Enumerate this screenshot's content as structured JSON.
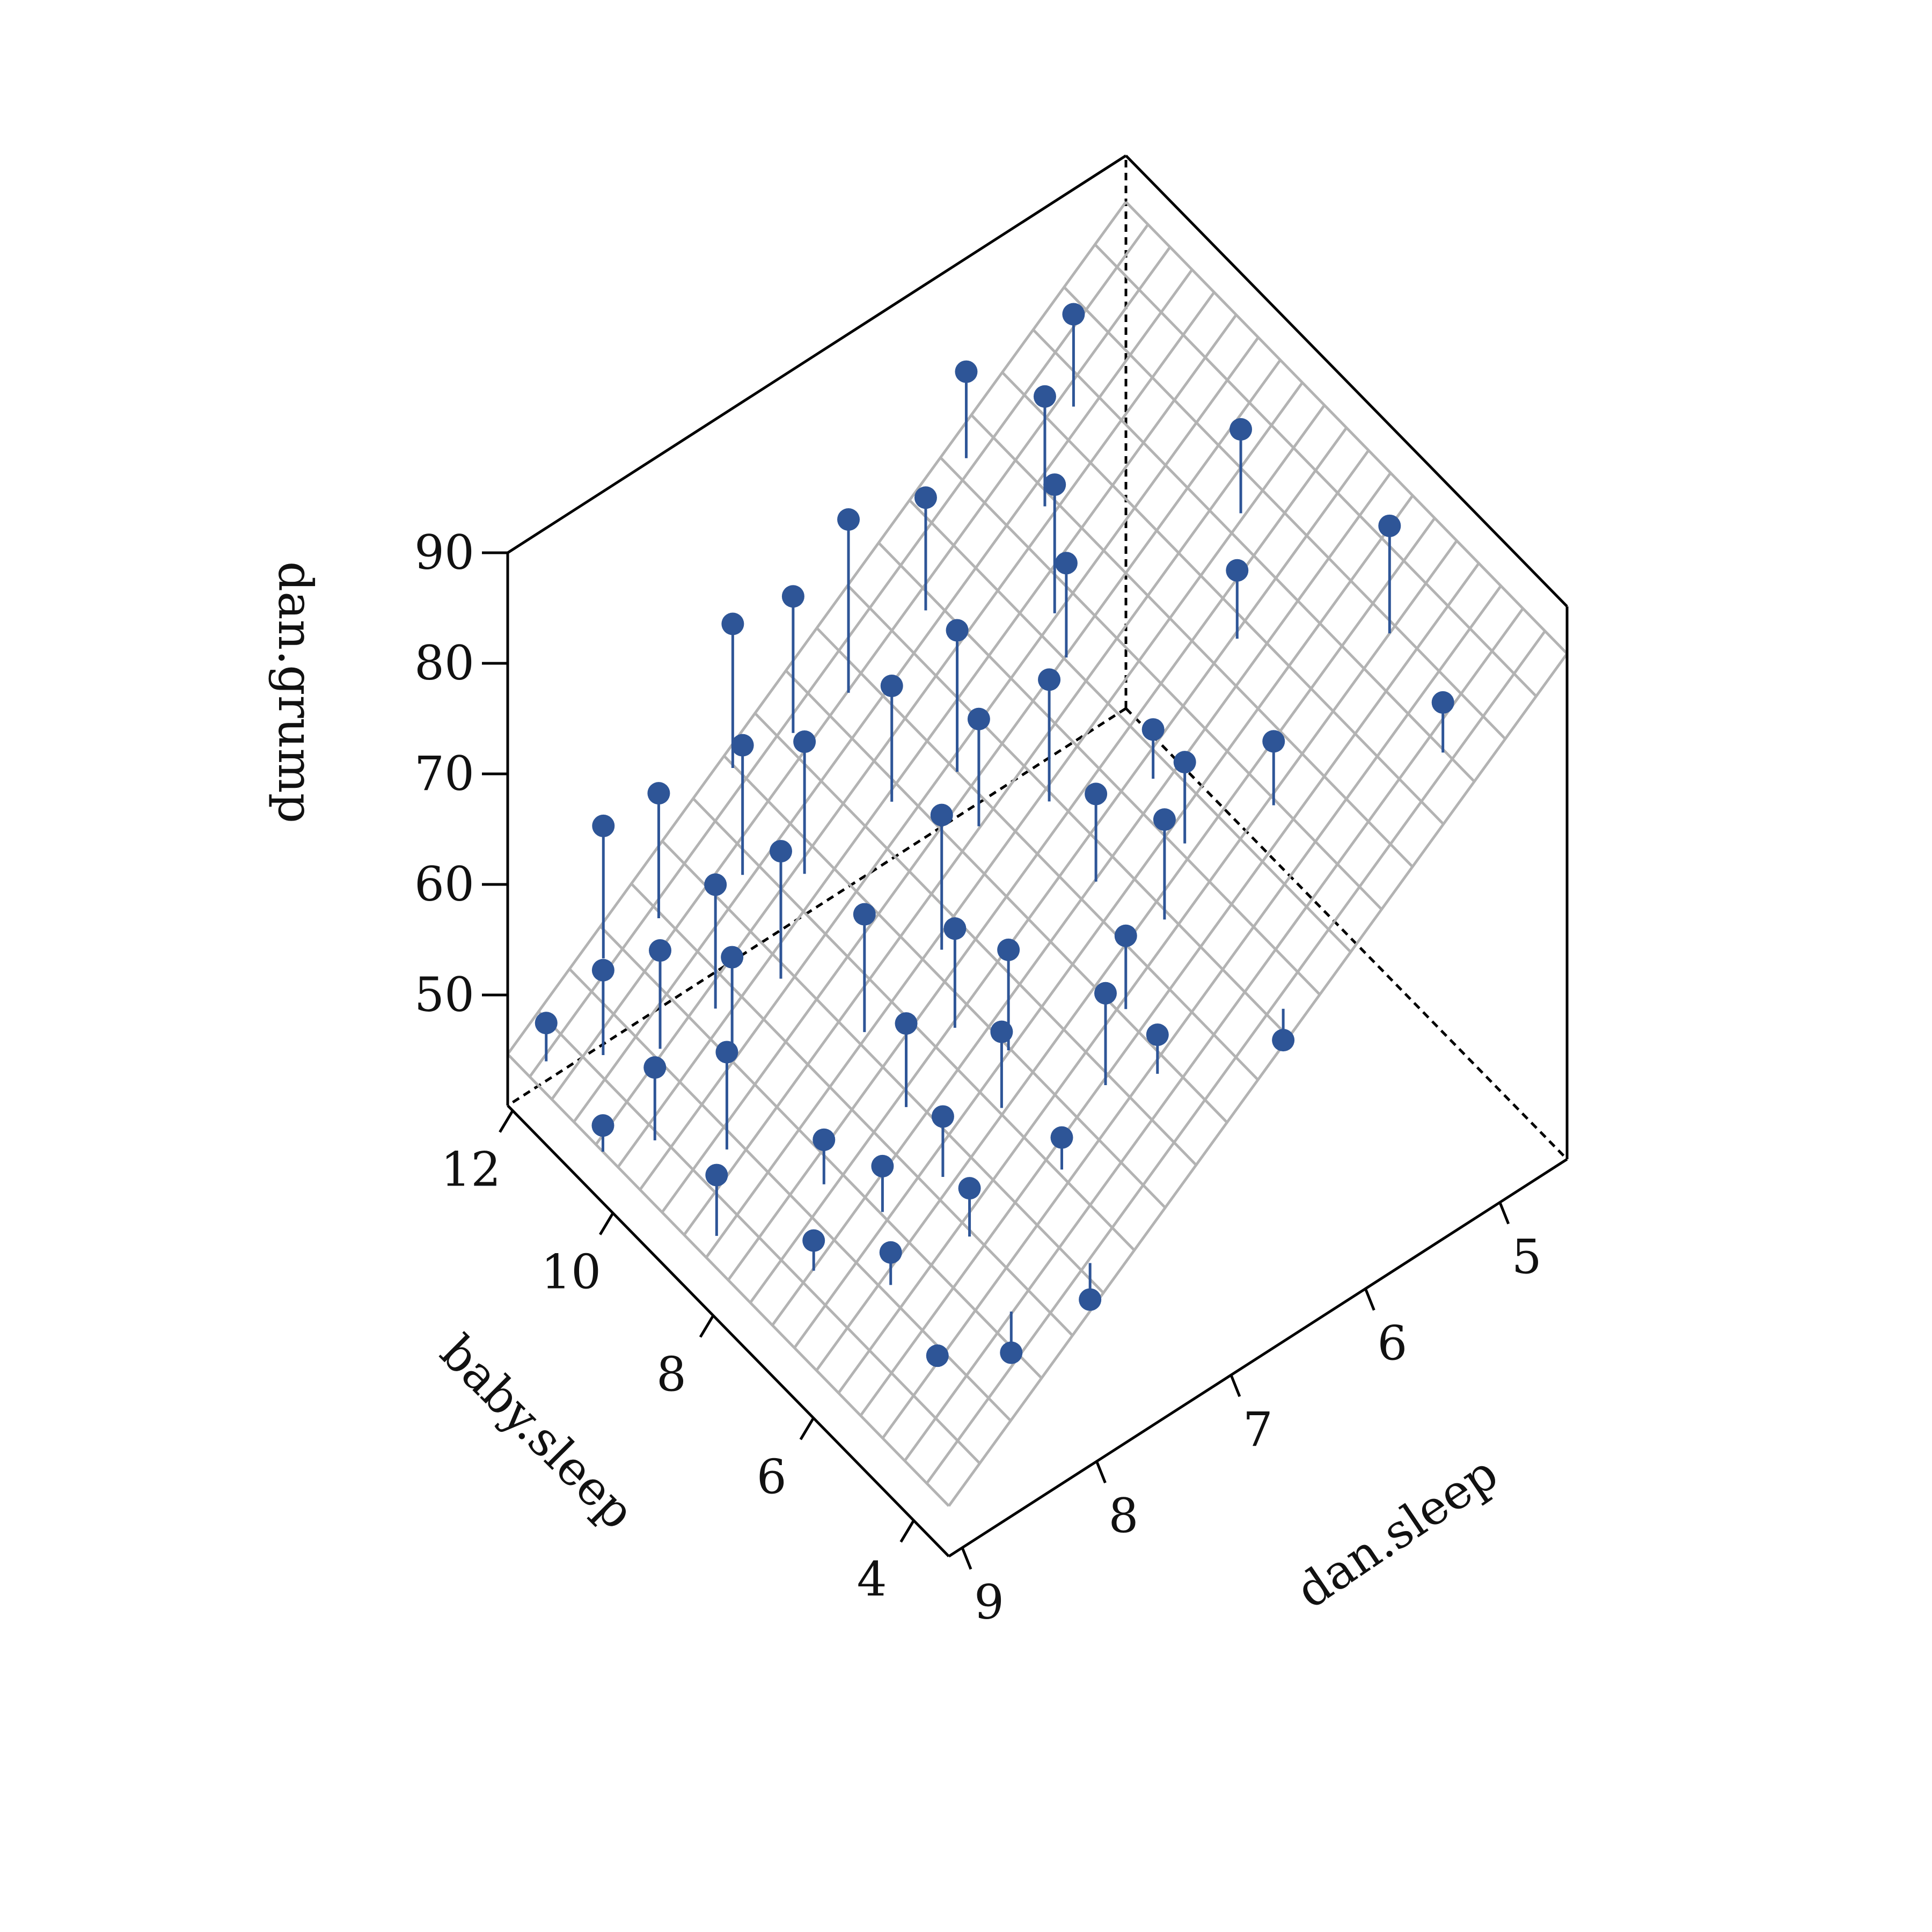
{
  "chart_data": {
    "type": "scatter",
    "title": "",
    "xlabel": "dan.sleep",
    "ylabel": "baby.sleep",
    "zlabel": "dan.grump",
    "xlim": [
      4.5,
      9.1
    ],
    "ylim": [
      3.3,
      12.1
    ],
    "zlim": [
      40,
      90
    ],
    "x_ticks": [
      "5",
      "6",
      "7",
      "8",
      "9"
    ],
    "y_ticks": [
      "4",
      "6",
      "8",
      "10",
      "12"
    ],
    "z_ticks": [
      "50",
      "60",
      "70",
      "80",
      "90"
    ],
    "regression_plane": {
      "intercept": 125.97,
      "dan_sleep_coef": -8.95,
      "baby_sleep_coef": 0.01
    },
    "grid": "regression-plane mesh 20 x 20",
    "colors": {
      "points": "#2e5597",
      "plane": "#b3b3b3",
      "box": "#000000"
    },
    "series": [
      {
        "points": [
          [
            5.0,
            5.5,
            91
          ],
          [
            5.1,
            8.2,
            88
          ],
          [
            5.3,
            11.0,
            87
          ],
          [
            5.2,
            3.9,
            84
          ],
          [
            5.7,
            10.5,
            85
          ],
          [
            6.0,
            9.5,
            84
          ],
          [
            5.5,
            7.2,
            83
          ],
          [
            5.8,
            11.8,
            82
          ],
          [
            6.1,
            9.0,
            80
          ],
          [
            6.4,
            11.0,
            79
          ],
          [
            5.9,
            5.4,
            79
          ],
          [
            6.6,
            8.0,
            78
          ],
          [
            6.9,
            11.2,
            80
          ],
          [
            6.2,
            7.0,
            75
          ],
          [
            6.6,
            5.7,
            76
          ],
          [
            6.7,
            6.8,
            74
          ],
          [
            6.9,
            8.6,
            74
          ],
          [
            7.1,
            9.8,
            73
          ],
          [
            7.2,
            11.5,
            74
          ],
          [
            6.5,
            3.6,
            65
          ],
          [
            7.4,
            8.0,
            72
          ],
          [
            7.6,
            10.2,
            70
          ],
          [
            7.0,
            5.4,
            70
          ],
          [
            7.6,
            7.2,
            67
          ],
          [
            7.8,
            10.9,
            68
          ],
          [
            7.5,
            6.4,
            68
          ],
          [
            8.0,
            9.6,
            66
          ],
          [
            7.9,
            8.2,
            66
          ],
          [
            7.1,
            4.5,
            66
          ],
          [
            7.7,
            6.0,
            64
          ],
          [
            8.2,
            11.5,
            64
          ],
          [
            8.3,
            10.1,
            63
          ],
          [
            8.0,
            7.1,
            62
          ],
          [
            8.5,
            11.8,
            62
          ],
          [
            8.4,
            9.5,
            60
          ],
          [
            7.7,
            4.8,
            60
          ],
          [
            8.1,
            6.1,
            59
          ],
          [
            8.6,
            10.4,
            58
          ],
          [
            8.7,
            8.8,
            57
          ],
          [
            8.2,
            5.3,
            57
          ],
          [
            8.8,
            11.0,
            55
          ],
          [
            8.4,
            6.5,
            55
          ],
          [
            8.9,
            9.7,
            53
          ],
          [
            8.5,
            7.4,
            54
          ],
          [
            7.9,
            3.7,
            52
          ],
          [
            8.6,
            5.8,
            52
          ],
          [
            9.0,
            8.2,
            51
          ],
          [
            8.7,
            4.6,
            49
          ],
          [
            9.0,
            11.6,
            49
          ],
          [
            8.3,
            4.2,
            48
          ],
          [
            8.8,
            6.8,
            50
          ],
          [
            9.1,
            10.2,
            47
          ],
          [
            7.3,
            5.0,
            69
          ],
          [
            6.8,
            9.3,
            78
          ],
          [
            7.5,
            11.9,
            72
          ],
          [
            6.3,
            6.1,
            77
          ]
        ]
      }
    ]
  }
}
